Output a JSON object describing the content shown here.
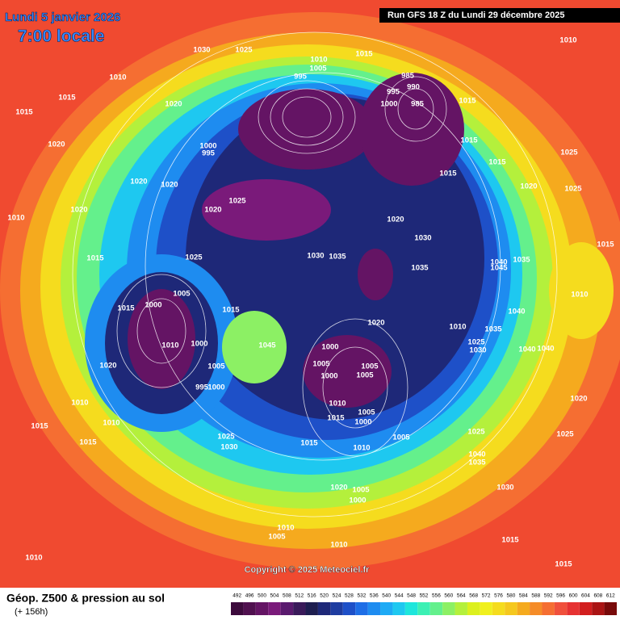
{
  "header": {
    "date": "Lundi 5 janvier 2026",
    "time": "7:00 locale",
    "run": "Run GFS 18 Z du Lundi 29 décembre 2025"
  },
  "copyright": "Copyright © 2025 Meteociel.fr",
  "footer": {
    "title": "Géop. Z500 & pression au sol",
    "lead": "(+ 156h)"
  },
  "scale": {
    "labels": [
      492,
      496,
      500,
      504,
      508,
      512,
      516,
      520,
      524,
      528,
      532,
      536,
      540,
      544,
      548,
      552,
      556,
      560,
      564,
      568,
      572,
      576,
      580,
      584,
      588,
      592,
      596,
      600,
      604,
      608,
      612
    ],
    "colors": [
      "#3c0a3c",
      "#50104f",
      "#641464",
      "#7a1a7a",
      "#5a1a6e",
      "#3a1a5a",
      "#1e1e50",
      "#1e2878",
      "#1e3ca0",
      "#1e50c8",
      "#1e6ee6",
      "#1e8cf0",
      "#1eaaf5",
      "#1ec8f0",
      "#1ee6dc",
      "#3cf0b4",
      "#64f08c",
      "#8cf064",
      "#b4f03c",
      "#dcf01e",
      "#f0f01e",
      "#f5dc1e",
      "#f5c81e",
      "#f5aa1e",
      "#f58c28",
      "#f56e32",
      "#f0503c",
      "#e63232",
      "#d21e1e",
      "#aa1414",
      "#780a0a"
    ]
  },
  "isobar_labels": [
    1030,
    1025,
    1010,
    1015,
    1015,
    1020,
    1020,
    1000,
    995,
    1010,
    1020,
    1020,
    1020,
    1025,
    1020,
    1010,
    1005,
    995,
    1015,
    985,
    990,
    995,
    1000,
    985,
    1015,
    1015,
    1015,
    1015,
    1020,
    1025,
    1010,
    1025,
    1020,
    1030,
    1035,
    1030,
    1035,
    1015,
    1025,
    1005,
    1000,
    1015,
    1015,
    1010,
    1000,
    1020,
    1005,
    1000,
    995,
    1020,
    1010,
    1035,
    1040,
    1040,
    1035,
    1045,
    1010,
    1015,
    1000,
    1005,
    1000,
    1005,
    1005,
    1010,
    1015,
    1005,
    1000,
    1005,
    1015,
    1010,
    1020,
    1005,
    1000,
    1025,
    1030,
    1015,
    1015,
    1010,
    1010,
    1010,
    1005,
    1010,
    1010,
    1015,
    1015,
    1030,
    1040,
    1035,
    1025,
    1025,
    1020,
    1040,
    1040,
    1025,
    1030,
    1045
  ]
}
